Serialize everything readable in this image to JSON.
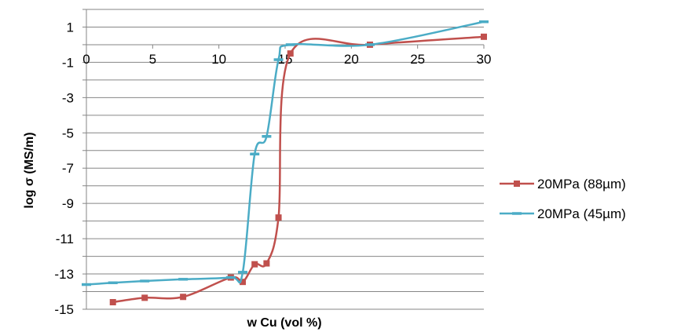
{
  "chart_data": {
    "type": "scatter",
    "title": "",
    "xlabel": "w Cu (vol %)",
    "ylabel": "log σ (MS/m)",
    "xlim": [
      0,
      30
    ],
    "ylim": [
      -15,
      2
    ],
    "x_ticks": [
      "0",
      "5",
      "10",
      "15",
      "20",
      "25",
      "30"
    ],
    "y_ticks": [
      "1",
      "-1",
      "-3",
      "-5",
      "-7",
      "-9",
      "-11",
      "-13",
      "-15"
    ],
    "grid": "horizontal",
    "legend_position": "right",
    "series": [
      {
        "name": "20MPa (88µm)",
        "color": "#c0504d",
        "marker": "square",
        "points": [
          [
            2,
            -14.6
          ],
          [
            4.4,
            -14.35
          ],
          [
            7.3,
            -14.3
          ],
          [
            10.9,
            -13.2
          ],
          [
            11.8,
            -13.45
          ],
          [
            12.7,
            -12.45
          ],
          [
            13.6,
            -12.4
          ],
          [
            14.5,
            -9.8
          ],
          [
            15.4,
            -0.5
          ],
          [
            21.4,
            0
          ],
          [
            30,
            0.45
          ]
        ]
      },
      {
        "name": "20MPa (45µm)",
        "color": "#4bacc6",
        "marker": "dash",
        "points": [
          [
            0,
            -13.6
          ],
          [
            2,
            -13.5
          ],
          [
            4.4,
            -13.4
          ],
          [
            7.3,
            -13.3
          ],
          [
            10.9,
            -13.2
          ],
          [
            11.8,
            -12.9
          ],
          [
            12.7,
            -6.2
          ],
          [
            13.6,
            -5.2
          ],
          [
            14.5,
            -0.85
          ],
          [
            15.4,
            0
          ],
          [
            21.4,
            0
          ],
          [
            30,
            1.3
          ]
        ]
      }
    ]
  }
}
